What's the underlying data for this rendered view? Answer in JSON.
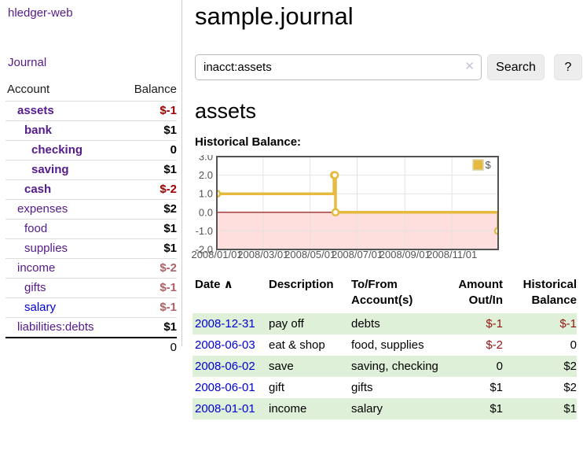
{
  "app": {
    "brand": "hledger-web"
  },
  "sidebar": {
    "journal_link": "Journal",
    "columns": {
      "account": "Account",
      "balance": "Balance"
    },
    "accounts": [
      {
        "name": "assets",
        "balance": "$-1",
        "depth": 1,
        "bold": true,
        "balance_class": "neg-strong",
        "link_class": ""
      },
      {
        "name": "bank",
        "balance": "$1",
        "depth": 2,
        "bold": true,
        "balance_class": "",
        "link_class": ""
      },
      {
        "name": "checking",
        "balance": "0",
        "depth": 3,
        "bold": true,
        "balance_class": "",
        "link_class": ""
      },
      {
        "name": "saving",
        "balance": "$1",
        "depth": 3,
        "bold": true,
        "balance_class": "",
        "link_class": ""
      },
      {
        "name": "cash",
        "balance": "$-2",
        "depth": 2,
        "bold": true,
        "balance_class": "neg-strong",
        "link_class": ""
      },
      {
        "name": "expenses",
        "balance": "$2",
        "depth": 1,
        "bold": false,
        "balance_class": "",
        "link_class": ""
      },
      {
        "name": "food",
        "balance": "$1",
        "depth": 2,
        "bold": false,
        "balance_class": "",
        "link_class": ""
      },
      {
        "name": "supplies",
        "balance": "$1",
        "depth": 2,
        "bold": false,
        "balance_class": "",
        "link_class": ""
      },
      {
        "name": "income",
        "balance": "$-2",
        "depth": 1,
        "bold": false,
        "balance_class": "neg-soft",
        "link_class": ""
      },
      {
        "name": "gifts",
        "balance": "$-1",
        "depth": 2,
        "bold": false,
        "balance_class": "neg-soft",
        "link_class": ""
      },
      {
        "name": "salary",
        "balance": "$-1",
        "depth": 2,
        "bold": false,
        "balance_class": "neg-soft",
        "link_class": "unvisited"
      },
      {
        "name": "liabilities:debts",
        "balance": "$1",
        "depth": 1,
        "bold": false,
        "balance_class": "",
        "link_class": ""
      }
    ],
    "total": "0"
  },
  "main": {
    "title": "sample.journal",
    "search": {
      "value": "inacct:assets",
      "clear_icon": "✕",
      "button_label": "Search",
      "help_label": "?"
    },
    "account_heading": "assets",
    "section_label": "Historical Balance:"
  },
  "chart_data": {
    "type": "line",
    "title": "Historical Balance",
    "series": [
      {
        "name": "$",
        "color": "#e6b93f",
        "step": "after",
        "points": [
          [
            "2008-01-01",
            1
          ],
          [
            "2008-06-01",
            2
          ],
          [
            "2008-06-02",
            2
          ],
          [
            "2008-06-03",
            0
          ],
          [
            "2008-12-31",
            -1
          ]
        ]
      }
    ],
    "x_ticks": [
      "2008/01/01",
      "2008/03/01",
      "2008/05/01",
      "2008/07/01",
      "2008/09/01",
      "2008/11/01"
    ],
    "y_ticks": [
      3,
      2,
      1,
      0,
      -1,
      -2
    ],
    "ylim": [
      -2,
      3
    ],
    "x_range_days": [
      "2008-01-01",
      "2008-12-31"
    ],
    "legend": {
      "label": "$",
      "position": "top-right"
    },
    "grid": true,
    "negative_region_color": "#ffdede",
    "zero_line_color": "#8b0000",
    "border_color": "#545454",
    "tick_label_color": "#545454"
  },
  "register": {
    "headers": [
      {
        "label": "Date",
        "sort": "∧",
        "align": "left"
      },
      {
        "label": "Description",
        "align": "left"
      },
      {
        "label": "To/From Account(s)",
        "align": "left"
      },
      {
        "label": "Amount Out/In",
        "align": "right"
      },
      {
        "label": "Historical Balance",
        "align": "right"
      }
    ],
    "rows": [
      {
        "date": "2008-12-31",
        "description": "pay off",
        "accounts": "debts",
        "amount": "$-1",
        "amount_neg": true,
        "balance": "$-1",
        "balance_neg": true,
        "striped": true
      },
      {
        "date": "2008-06-03",
        "description": "eat & shop",
        "accounts": "food, supplies",
        "amount": "$-2",
        "amount_neg": true,
        "balance": "0",
        "balance_neg": false,
        "striped": false
      },
      {
        "date": "2008-06-02",
        "description": "save",
        "accounts": "saving, checking",
        "amount": "0",
        "amount_neg": false,
        "balance": "$2",
        "balance_neg": false,
        "striped": true
      },
      {
        "date": "2008-06-01",
        "description": "gift",
        "accounts": "gifts",
        "amount": "$1",
        "amount_neg": false,
        "balance": "$2",
        "balance_neg": false,
        "striped": false
      },
      {
        "date": "2008-01-01",
        "description": "income",
        "accounts": "salary",
        "amount": "$1",
        "amount_neg": false,
        "balance": "$1",
        "balance_neg": false,
        "striped": true
      }
    ]
  }
}
